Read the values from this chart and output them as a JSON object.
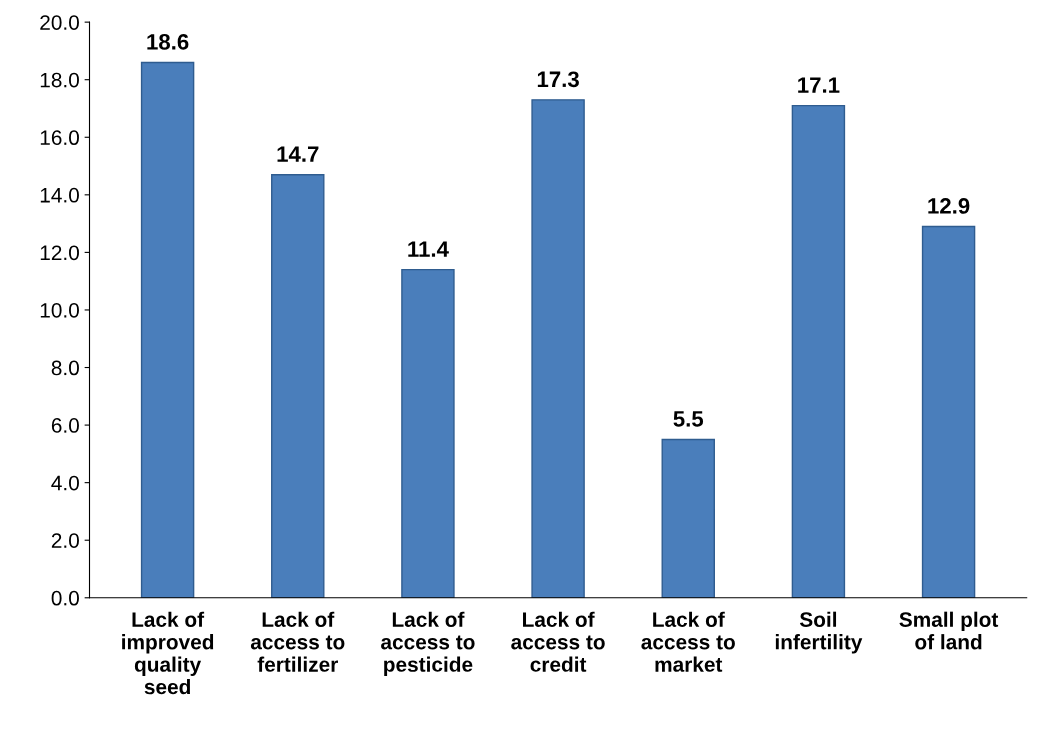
{
  "chart_data": {
    "type": "bar",
    "categories": [
      "Lack of\nimproved\nquality\nseed",
      "Lack of\naccess to\nfertilizer",
      "Lack of\naccess to\npesticide",
      "Lack of\naccess to\ncredit",
      "Lack of\naccess to\nmarket",
      "Soil\ninfertility",
      "Small plot\nof land"
    ],
    "values": [
      18.6,
      14.7,
      11.4,
      17.3,
      5.5,
      17.1,
      12.9
    ],
    "color": "#4a7ebb",
    "ylim": [
      0,
      20
    ],
    "yticks": [
      {
        "value": 0,
        "label": "0.0"
      },
      {
        "value": 2,
        "label": "2.0"
      },
      {
        "value": 4,
        "label": "4.0"
      },
      {
        "value": 6,
        "label": "6.0"
      },
      {
        "value": 8,
        "label": "8.0"
      },
      {
        "value": 10,
        "label": "10.0"
      },
      {
        "value": 12,
        "label": "12.0"
      },
      {
        "value": 14,
        "label": "14.0"
      },
      {
        "value": 16,
        "label": "16.0"
      },
      {
        "value": 18,
        "label": "18.0"
      },
      {
        "value": 20,
        "label": "20.0"
      }
    ],
    "data_labels": true,
    "grid": false
  }
}
